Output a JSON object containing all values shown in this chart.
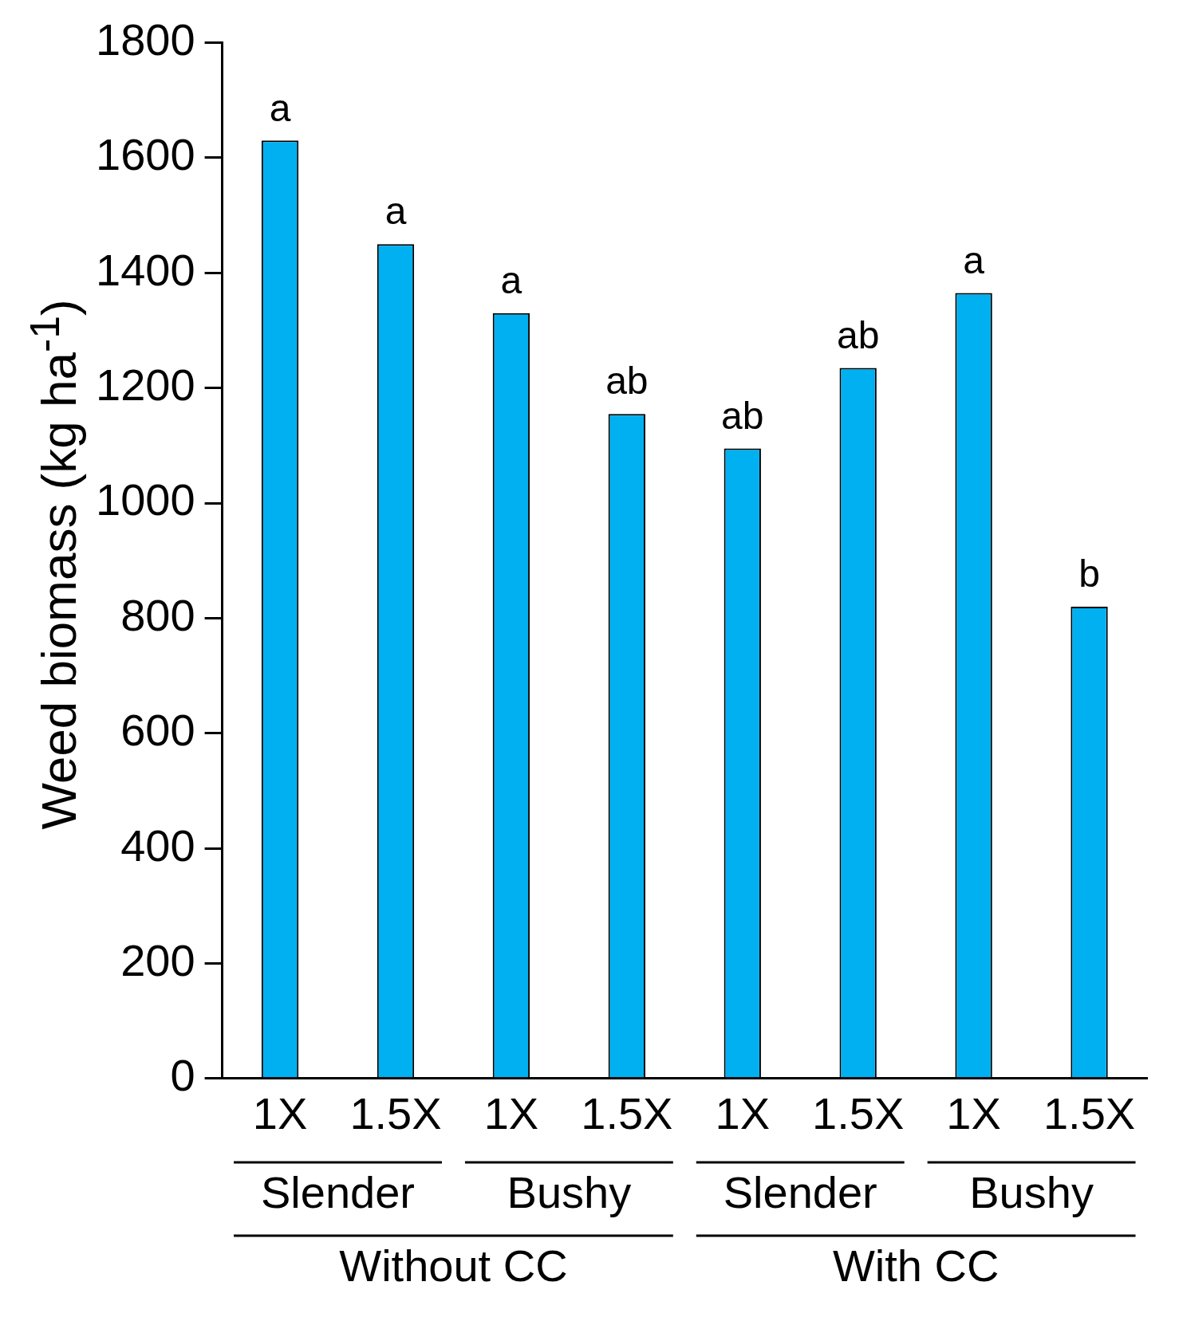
{
  "chart_data": {
    "type": "bar",
    "ylabel": "Weed biomass (kg ha$^{-1}$)",
    "categories": [
      "1X",
      "1.5X",
      "1X",
      "1.5X",
      "1X",
      "1.5X",
      "1X",
      "1.5X"
    ],
    "values": [
      1630,
      1450,
      1330,
      1155,
      1095,
      1235,
      1365,
      820
    ],
    "value_labels": [
      "a",
      "a",
      "a",
      "ab",
      "ab",
      "ab",
      "a",
      "b"
    ],
    "color": "#00b0f0",
    "ylim": [
      0,
      1800
    ],
    "yticks": [
      0,
      200,
      400,
      600,
      800,
      1000,
      1200,
      1400,
      1600,
      1800
    ],
    "grid": false,
    "legend": false,
    "annotations": [
      "Slender",
      "Bushy",
      "Slender",
      "Bushy",
      "Without CC",
      "With CC"
    ]
  }
}
